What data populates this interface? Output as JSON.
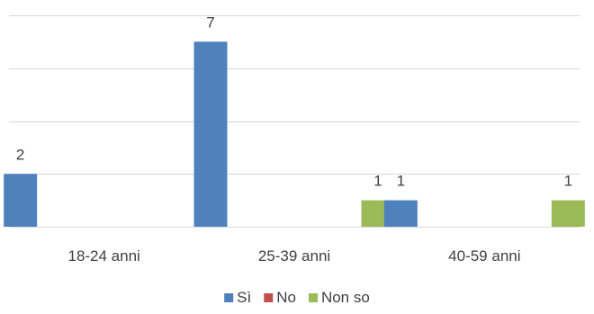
{
  "chart_data": {
    "type": "bar",
    "categories": [
      "18-24 anni",
      "25-39 anni",
      "40-59 anni"
    ],
    "series": [
      {
        "name": "Sì",
        "values": [
          2,
          7,
          1
        ],
        "color": "#4f81bd"
      },
      {
        "name": "No",
        "values": [
          0,
          0,
          0
        ],
        "color": "#c0504d"
      },
      {
        "name": "Non so",
        "values": [
          0,
          1,
          1
        ],
        "color": "#9bbb59"
      }
    ],
    "ylim": [
      0,
      8
    ],
    "grid": true,
    "axis_labels_visible": false,
    "legend_position": "bottom"
  },
  "colors": {
    "gridline": "#d9d9d9",
    "text": "#404040"
  }
}
